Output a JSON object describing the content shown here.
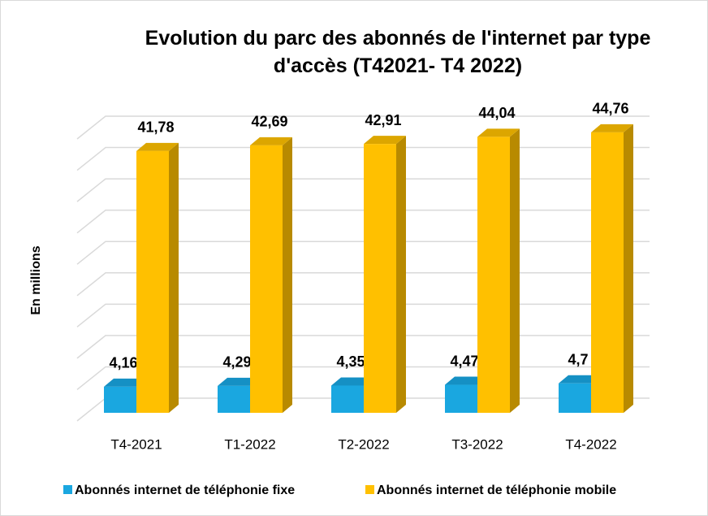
{
  "chart_data": {
    "type": "bar3d",
    "title": "Evolution du parc des abonnés de l'internet par type d'accès (T42021- T4 2022)",
    "y_label": "En millions",
    "categories": [
      "T4-2021",
      "T1-2022",
      "T2-2022",
      "T3-2022",
      "T4-2022"
    ],
    "series": [
      {
        "name": "Abonnés internet de téléphonie fixe",
        "color": "#1aa7e0",
        "side_color": "#117aa6",
        "top_color": "#1590c4",
        "values": [
          4.16,
          4.29,
          4.35,
          4.47,
          4.7
        ],
        "value_labels": [
          "4,16",
          "4,29",
          "4,35",
          "4,47",
          "4,7"
        ]
      },
      {
        "name": "Abonnés internet de téléphonie mobile",
        "color": "#ffc000",
        "side_color": "#b88a00",
        "top_color": "#dca600",
        "values": [
          41.78,
          42.69,
          42.91,
          44.04,
          44.76
        ],
        "value_labels": [
          "41,78",
          "42,69",
          "42,91",
          "44,04",
          "44,76"
        ]
      }
    ],
    "ylim": [
      0,
      45
    ],
    "yticks": [
      0,
      5,
      10,
      15,
      20,
      25,
      30,
      35,
      40,
      45
    ],
    "grid": true
  }
}
